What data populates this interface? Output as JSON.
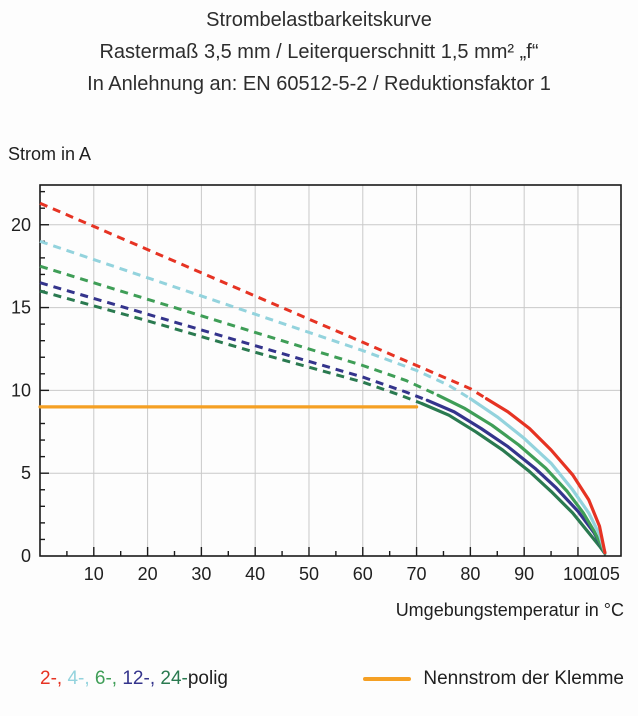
{
  "title": {
    "line1": "Strombelastbarkeitskurve",
    "line2": "Rastermaß 3,5 mm / Leiterquerschnitt 1,5 mm² „f“",
    "line3": "In Anlehnung an: EN 60512-5-2 / Reduktionsfaktor 1"
  },
  "axis": {
    "y_title": "Strom in A",
    "x_title": "Umgebungstemperatur in °C"
  },
  "legend": {
    "pole_items": [
      {
        "label": "2-,",
        "color": "#e63323"
      },
      {
        "label": "4-,",
        "color": "#93d3dd"
      },
      {
        "label": "6-,",
        "color": "#3f9e57"
      },
      {
        "label": "12-,",
        "color": "#34348c"
      },
      {
        "label": "24-",
        "color": "#2a7a50"
      }
    ],
    "pole_suffix": "polig",
    "nominal_label": "Nennstrom der Klemme"
  },
  "chart_data": {
    "type": "line",
    "title": "Strombelastbarkeitskurve",
    "subtitle": "Rastermaß 3,5 mm / Leiterquerschnitt 1,5 mm² „f“ / In Anlehnung an: EN 60512-5-2 / Reduktionsfaktor 1",
    "xlabel": "Umgebungstemperatur in °C",
    "ylabel": "Strom in A",
    "xlim": [
      0,
      108
    ],
    "ylim": [
      0,
      22.4
    ],
    "x_ticks": [
      10,
      20,
      30,
      40,
      50,
      60,
      70,
      80,
      90,
      100,
      105
    ],
    "y_ticks": [
      0,
      5,
      10,
      15,
      20
    ],
    "x_grid": [
      10,
      20,
      30,
      40,
      50,
      60,
      70,
      80,
      90,
      100
    ],
    "y_grid": [
      5,
      10,
      15,
      20
    ],
    "grid_color": "#c9c9c9",
    "nominal": {
      "name": "Nennstrom der Klemme",
      "color": "#f5a024",
      "value_A": 9,
      "points": [
        [
          0,
          9
        ],
        [
          70,
          9
        ]
      ]
    },
    "series": [
      {
        "name": "2-polig",
        "color": "#e63323",
        "dash_until": 83,
        "points": [
          [
            0,
            21.3
          ],
          [
            20,
            18.5
          ],
          [
            40,
            15.7
          ],
          [
            60,
            12.9
          ],
          [
            70,
            11.5
          ],
          [
            80,
            10.1
          ],
          [
            83,
            9.5
          ],
          [
            87,
            8.7
          ],
          [
            91,
            7.7
          ],
          [
            95,
            6.4
          ],
          [
            99,
            4.9
          ],
          [
            102,
            3.4
          ],
          [
            104,
            1.8
          ],
          [
            105,
            0.2
          ]
        ]
      },
      {
        "name": "4-polig",
        "color": "#93d3dd",
        "dash_until": 80,
        "points": [
          [
            0,
            19.0
          ],
          [
            20,
            16.8
          ],
          [
            40,
            14.6
          ],
          [
            60,
            12.4
          ],
          [
            70,
            11.2
          ],
          [
            76,
            10.3
          ],
          [
            80,
            9.5
          ],
          [
            85,
            8.4
          ],
          [
            90,
            7.1
          ],
          [
            95,
            5.6
          ],
          [
            99,
            4.0
          ],
          [
            102,
            2.6
          ],
          [
            104,
            1.3
          ],
          [
            105,
            0.2
          ]
        ]
      },
      {
        "name": "6-polig",
        "color": "#3f9e57",
        "dash_until": 74,
        "points": [
          [
            0,
            17.5
          ],
          [
            20,
            15.5
          ],
          [
            40,
            13.5
          ],
          [
            60,
            11.5
          ],
          [
            68,
            10.6
          ],
          [
            74,
            9.7
          ],
          [
            79,
            8.9
          ],
          [
            84,
            7.9
          ],
          [
            89,
            6.7
          ],
          [
            94,
            5.3
          ],
          [
            98,
            3.9
          ],
          [
            101,
            2.6
          ],
          [
            103,
            1.5
          ],
          [
            105,
            0.2
          ]
        ]
      },
      {
        "name": "12-polig",
        "color": "#34348c",
        "dash_until": 72,
        "points": [
          [
            0,
            16.5
          ],
          [
            20,
            14.6
          ],
          [
            40,
            12.7
          ],
          [
            60,
            10.8
          ],
          [
            68,
            9.9
          ],
          [
            72,
            9.4
          ],
          [
            77,
            8.7
          ],
          [
            82,
            7.7
          ],
          [
            87,
            6.6
          ],
          [
            92,
            5.3
          ],
          [
            96,
            4.1
          ],
          [
            100,
            2.7
          ],
          [
            103,
            1.4
          ],
          [
            105,
            0.2
          ]
        ]
      },
      {
        "name": "24-polig",
        "color": "#2a7a50",
        "dash_until": 71,
        "points": [
          [
            0,
            16.0
          ],
          [
            20,
            14.2
          ],
          [
            40,
            12.3
          ],
          [
            60,
            10.5
          ],
          [
            67,
            9.7
          ],
          [
            71,
            9.2
          ],
          [
            76,
            8.5
          ],
          [
            81,
            7.5
          ],
          [
            86,
            6.4
          ],
          [
            91,
            5.1
          ],
          [
            95,
            3.9
          ],
          [
            99,
            2.6
          ],
          [
            102,
            1.4
          ],
          [
            104,
            0.6
          ],
          [
            105,
            0.15
          ]
        ]
      }
    ]
  }
}
